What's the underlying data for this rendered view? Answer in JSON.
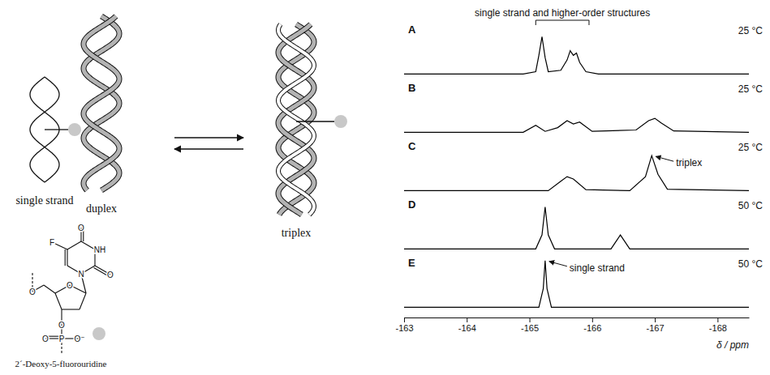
{
  "diagram": {
    "labels": {
      "single_strand": "single strand",
      "duplex": "duplex",
      "triplex": "triplex"
    },
    "structure": {
      "name": "2´-Deoxy-5-fluorouridine",
      "atoms": [
        "F",
        "O",
        "NH",
        "O",
        "N",
        "O",
        "O",
        "O",
        "P",
        "O",
        "O⁻"
      ]
    }
  },
  "chart_data": {
    "type": "line",
    "xlabel": "δ / ppm",
    "xlim": [
      -163,
      -168.5
    ],
    "xticks": [
      -163,
      -164,
      -165,
      -166,
      -167,
      -168
    ],
    "ylim": [
      -0.15,
      1.1
    ],
    "tick_labels": "x",
    "grid": false,
    "series": [
      {
        "name": "A",
        "temperature": "25 °C",
        "color": "#000000",
        "x": [
          -163,
          -164.9,
          -165.1,
          -165.15,
          -165.2,
          -165.25,
          -165.3,
          -165.5,
          -165.6,
          -165.65,
          -165.7,
          -165.75,
          -165.8,
          -165.9,
          -166.1,
          -168.5
        ],
        "values": [
          0,
          0,
          0.05,
          0.4,
          0.8,
          0.35,
          0.05,
          0.08,
          0.3,
          0.5,
          0.4,
          0.45,
          0.25,
          0.05,
          0,
          0
        ],
        "annotation": {
          "text": "single strand and higher-order structures",
          "x": [
            -165.1,
            -165.95
          ]
        }
      },
      {
        "name": "B",
        "temperature": "25 °C",
        "color": "#000000",
        "x": [
          -163,
          -164.9,
          -165.1,
          -165.25,
          -165.45,
          -165.6,
          -165.7,
          -165.8,
          -166.0,
          -166.7,
          -166.9,
          -167.0,
          -167.1,
          -167.3,
          -168.5
        ],
        "values": [
          0,
          0,
          0.15,
          0.02,
          0.1,
          0.25,
          0.18,
          0.22,
          0.02,
          0.05,
          0.25,
          0.3,
          0.2,
          0.03,
          0
        ]
      },
      {
        "name": "C",
        "temperature": "25 °C",
        "color": "#000000",
        "x": [
          -163,
          -165.3,
          -165.5,
          -165.6,
          -165.7,
          -165.9,
          -166.6,
          -166.85,
          -166.95,
          -167.05,
          -167.2,
          -168.5
        ],
        "values": [
          0,
          0,
          0.2,
          0.3,
          0.25,
          0.02,
          0,
          0.3,
          0.75,
          0.35,
          0.03,
          0
        ],
        "annotation": {
          "text": "triplex",
          "x": -166.95,
          "y": 0.75
        }
      },
      {
        "name": "D",
        "temperature": "50 °C",
        "color": "#000000",
        "x": [
          -163,
          -165.1,
          -165.2,
          -165.25,
          -165.3,
          -165.4,
          -166.3,
          -166.4,
          -166.45,
          -166.5,
          -166.6,
          -168.5
        ],
        "values": [
          0,
          0,
          0.3,
          0.9,
          0.3,
          0,
          0,
          0.2,
          0.3,
          0.2,
          0,
          0
        ]
      },
      {
        "name": "E",
        "temperature": "50 °C",
        "color": "#000000",
        "x": [
          -163,
          -165.15,
          -165.22,
          -165.25,
          -165.28,
          -165.35,
          -168.5
        ],
        "values": [
          0,
          0,
          0.4,
          1.0,
          0.4,
          0,
          0
        ],
        "annotation": {
          "text": "single strand",
          "x": -165.25,
          "y": 1.0
        }
      }
    ]
  }
}
